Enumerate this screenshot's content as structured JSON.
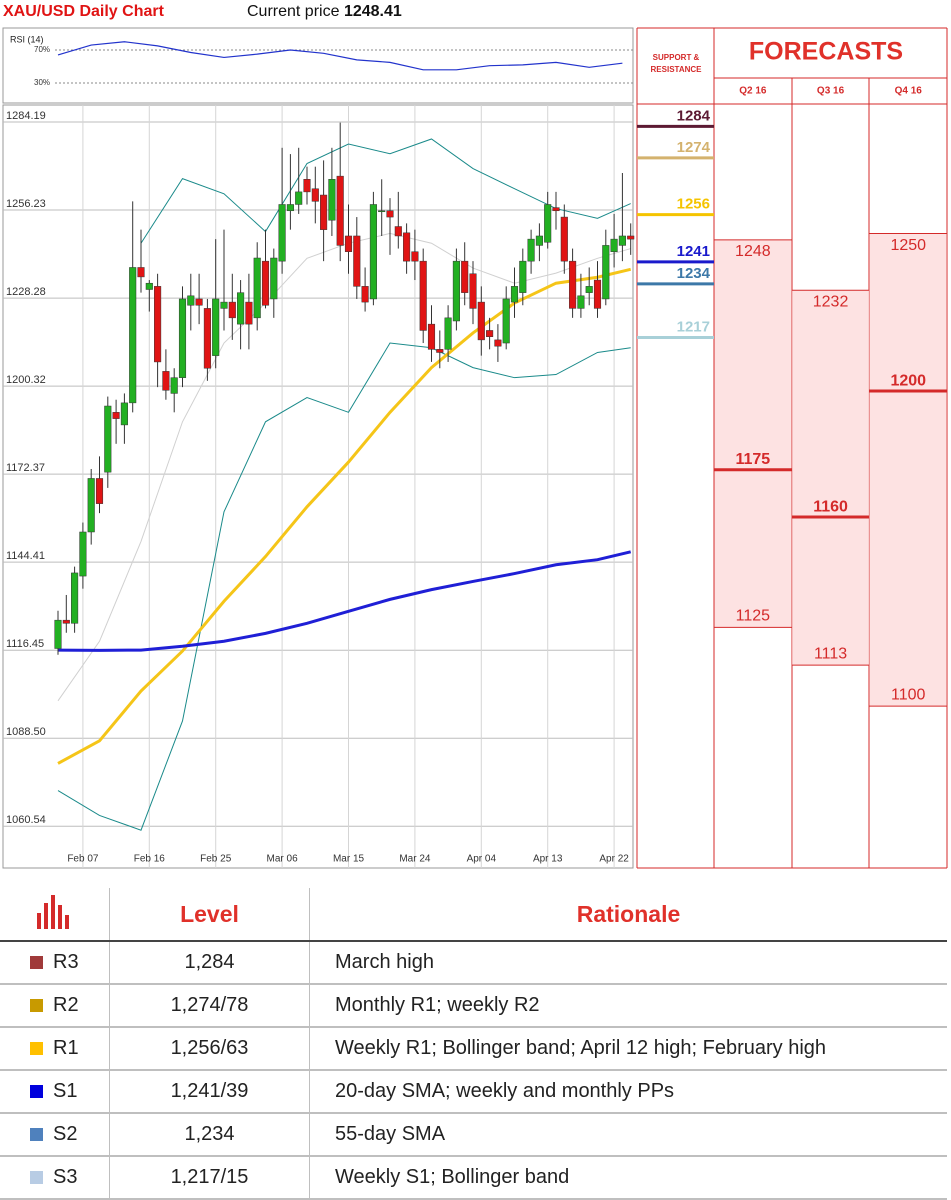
{
  "header": {
    "title": "XAU/USD Daily Chart",
    "price_label": "Current price",
    "price": 1248.41
  },
  "chart_data": [
    {
      "type": "candlestick",
      "categories": [
        null,
        null,
        null,
        "Feb 07",
        null,
        null,
        null,
        null,
        null,
        null,
        null,
        "Feb 16",
        null,
        null,
        null,
        null,
        null,
        null,
        null,
        "Feb 25",
        null,
        null,
        null,
        null,
        null,
        null,
        null,
        "Mar 06",
        null,
        null,
        null,
        null,
        null,
        null,
        null,
        "Mar 15",
        null,
        null,
        null,
        null,
        null,
        null,
        null,
        "Mar 24",
        null,
        null,
        null,
        null,
        null,
        null,
        null,
        "Apr 04",
        null,
        null,
        null,
        null,
        null,
        null,
        null,
        "Apr 13",
        null,
        null,
        null,
        null,
        null,
        null,
        null,
        "Apr 22",
        null,
        null
      ],
      "open": [
        1117,
        1126,
        1125,
        1140,
        1154,
        1171,
        1173,
        1192,
        1188,
        1195,
        1238,
        1231,
        1232,
        1205,
        1198,
        1203,
        1226,
        1228,
        1225,
        1210,
        1225,
        1227,
        1220,
        1227,
        1222,
        1240,
        1228,
        1240,
        1256,
        1258,
        1266,
        1263,
        1261,
        1253,
        1267,
        1248,
        1248,
        1232,
        1228,
        1256,
        1256,
        1251,
        1249,
        1243,
        1240,
        1220,
        1212,
        1212,
        1221,
        1240,
        1236,
        1227,
        1218,
        1215,
        1214,
        1227,
        1230,
        1240,
        1245,
        1246,
        1257,
        1254,
        1240,
        1225,
        1230,
        1234,
        1228,
        1243,
        1245,
        1248
      ],
      "high": [
        1129,
        1134,
        1143,
        1157,
        1174,
        1178,
        1197,
        1196,
        1198,
        1259,
        1250,
        1234,
        1236,
        1212,
        1206,
        1232,
        1236,
        1236,
        1228,
        1247,
        1250,
        1236,
        1234,
        1236,
        1246,
        1250,
        1244,
        1276,
        1274,
        1276,
        1270,
        1270,
        1272,
        1276,
        1284,
        1258,
        1254,
        1238,
        1262,
        1266,
        1260,
        1262,
        1252,
        1250,
        1244,
        1226,
        1218,
        1226,
        1244,
        1246,
        1240,
        1232,
        1222,
        1220,
        1232,
        1238,
        1244,
        1250,
        1252,
        1262,
        1262,
        1258,
        1244,
        1236,
        1238,
        1240,
        1250,
        1255,
        1268,
        1252
      ],
      "low": [
        1115,
        1122,
        1122,
        1136,
        1150,
        1160,
        1168,
        1182,
        1182,
        1192,
        1230,
        1224,
        1200,
        1196,
        1192,
        1200,
        1218,
        1220,
        1202,
        1206,
        1218,
        1215,
        1212,
        1212,
        1218,
        1225,
        1222,
        1236,
        1250,
        1255,
        1258,
        1252,
        1240,
        1248,
        1240,
        1236,
        1228,
        1224,
        1226,
        1248,
        1242,
        1244,
        1236,
        1234,
        1214,
        1208,
        1206,
        1208,
        1218,
        1226,
        1220,
        1210,
        1212,
        1208,
        1212,
        1222,
        1226,
        1236,
        1240,
        1244,
        1250,
        1236,
        1222,
        1222,
        1226,
        1222,
        1226,
        1238,
        1240,
        1242
      ],
      "close": [
        1126,
        1125,
        1141,
        1154,
        1171,
        1163,
        1194,
        1190,
        1195,
        1238,
        1235,
        1233,
        1208,
        1199,
        1203,
        1228,
        1229,
        1226,
        1206,
        1228,
        1227,
        1222,
        1230,
        1220,
        1241,
        1226,
        1241,
        1258,
        1258,
        1262,
        1262,
        1259,
        1250,
        1266,
        1245,
        1243,
        1232,
        1227,
        1258,
        1256,
        1254,
        1248,
        1240,
        1240,
        1218,
        1212,
        1211,
        1222,
        1240,
        1230,
        1225,
        1215,
        1216,
        1213,
        1228,
        1232,
        1240,
        1247,
        1248,
        1258,
        1256,
        1240,
        1225,
        1229,
        1232,
        1225,
        1245,
        1247,
        1248,
        1247
      ],
      "up_color": "#22b022",
      "down_color": "#e01414",
      "lines": [
        {
          "color": "#d0d0d0",
          "x": [
            0,
            5,
            10,
            15,
            20,
            25,
            30,
            35,
            40,
            45,
            50,
            55,
            60,
            65,
            69
          ],
          "values": [
            1100.4,
            1119.3,
            1151,
            1189,
            1214,
            1226.7,
            1240.9,
            1245.7,
            1248.8,
            1245.7,
            1237.8,
            1233,
            1236.2,
            1240.9,
            1244
          ]
        },
        {
          "color": "#1a8a8a",
          "x": [
            0,
            5,
            10,
            15,
            20,
            25,
            30,
            35,
            40,
            45,
            50,
            55,
            60,
            65,
            69
          ],
          "values": [
            1071.9,
            1064,
            1059.3,
            1094,
            1160.4,
            1189,
            1196.7,
            1192,
            1214,
            1212.5,
            1206.2,
            1203,
            1204,
            1211,
            1212.5
          ]
        },
        {
          "color": "#1a8a8a",
          "x": [
            10,
            15,
            20,
            25,
            30,
            35,
            40,
            45,
            50,
            55,
            60,
            65,
            69
          ],
          "values": [
            1245.7,
            1266.2,
            1261.4,
            1249.4,
            1271,
            1277.2,
            1274.1,
            1278.8,
            1269.4,
            1263,
            1256.7,
            1253.6,
            1258.3
          ]
        },
        {
          "color": "#f5c518",
          "x": [
            0,
            5,
            10,
            15,
            20,
            25,
            30,
            35,
            40,
            45,
            50,
            55,
            60,
            65,
            69
          ],
          "values": [
            1080.5,
            1087.7,
            1103.5,
            1116.2,
            1132,
            1146.2,
            1162,
            1176.2,
            1192,
            1206.2,
            1217.2,
            1226.7,
            1233,
            1234.9,
            1237.4
          ]
        },
        {
          "color": "#1f1fd6",
          "x": [
            0,
            5,
            10,
            15,
            20,
            25,
            30,
            35,
            40,
            45,
            50,
            55,
            60,
            65,
            69
          ],
          "values": [
            1116.5,
            1116.4,
            1116.5,
            1117.7,
            1119.3,
            1121.8,
            1125,
            1128.8,
            1132.6,
            1135.7,
            1138.3,
            1140.8,
            1143.6,
            1145.2,
            1147.7
          ]
        }
      ],
      "ylim": [
        1047.3,
        1284.19
      ],
      "yticks": [
        1284.19,
        1256.23,
        1228.28,
        1200.32,
        1172.37,
        1144.41,
        1116.45,
        {
          "value": 1088.5,
          "label": "1088.50"
        },
        1060.54
      ],
      "grid": true
    },
    {
      "type": "line",
      "title": "RSI (14)",
      "color": "#2233cc",
      "x": [
        0,
        4,
        8,
        12,
        16,
        20,
        24,
        28,
        32,
        36,
        40,
        44,
        48,
        52,
        56,
        60,
        64,
        68
      ],
      "values": [
        64,
        76,
        80,
        75,
        67,
        61,
        65,
        70,
        66,
        58,
        55,
        46,
        46,
        51,
        52,
        55,
        49,
        54
      ],
      "ylim": [
        0,
        100
      ],
      "yticks": [
        {
          "value": 70,
          "label": "70%"
        },
        {
          "value": 30,
          "label": "30%"
        }
      ]
    },
    {
      "type": "levels",
      "title": "SUPPORT & RESISTANCE",
      "values": [
        1284,
        1274,
        1256,
        1241,
        1234,
        1217
      ],
      "colors": [
        "#5c1a33",
        "#d4b26e",
        "#f5c400",
        "#1a1acc",
        "#3c78a8",
        "#a8d0d8"
      ],
      "ylim": [
        1048.6,
        1290.8
      ]
    },
    {
      "type": "forecast",
      "title": "FORECASTS",
      "categories": [
        "Q2 16",
        "Q3 16",
        "Q4 16"
      ],
      "high": [
        1248,
        1232,
        1250
      ],
      "mid": [
        1175,
        1160,
        1200
      ],
      "low": [
        1125,
        1113,
        1100
      ],
      "color": "#d42a2a",
      "fill": "#fde2e2",
      "ylim": [
        1048.6,
        1290.8
      ]
    }
  ],
  "table": {
    "header": [
      "Level",
      "Rationale"
    ],
    "rows": [
      {
        "label": "R3",
        "color": "#a03a3a",
        "level": "1,284",
        "rationale": "March high"
      },
      {
        "label": "R2",
        "color": "#c89a00",
        "level": "1,274/78",
        "rationale": "Monthly R1; weekly R2"
      },
      {
        "label": "R1",
        "color": "#ffc000",
        "level": "1,256/63",
        "rationale": "Weekly R1; Bollinger band; April 12 high; February high"
      },
      {
        "label": "S1",
        "color": "#0000dd",
        "level": "1,241/39",
        "rationale": "20-day SMA; weekly and monthly PPs"
      },
      {
        "label": "S2",
        "color": "#4f81bd",
        "level": "1,234",
        "rationale": "55-day SMA"
      },
      {
        "label": "S3",
        "color": "#b8cce4",
        "level": "1,217/15",
        "rationale": "Weekly S1; Bollinger band"
      }
    ]
  }
}
